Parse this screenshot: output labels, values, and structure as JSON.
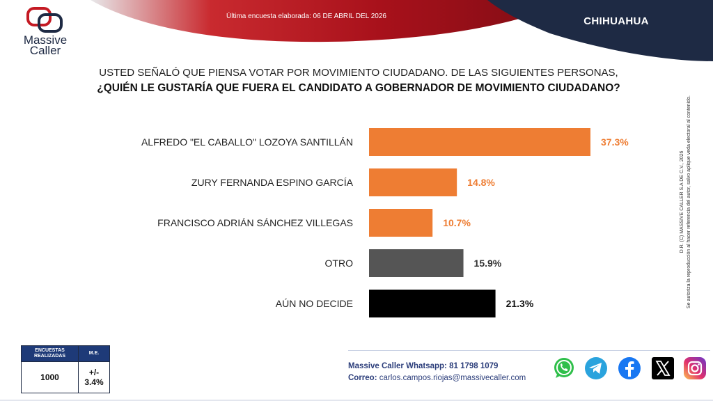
{
  "header": {
    "brand_line1": "Massive",
    "brand_line2": "Caller",
    "survey_date_label": "Última encuesta elaborada:",
    "survey_date_value": "06 DE ABRIL DEL 2026",
    "region": "CHIHUAHUA",
    "colors": {
      "red": "#b0141e",
      "navy": "#1e2a44"
    }
  },
  "question": {
    "line1": "USTED SEÑALÓ QUE PIENSA VOTAR POR MOVIMIENTO CIUDADANO. DE LAS SIGUIENTES PERSONAS,",
    "line2": "¿QUIÉN LE GUSTARÍA QUE FUERA EL CANDIDATO A GOBERNADOR DE MOVIMIENTO CIUDADANO?"
  },
  "chart_data": {
    "type": "bar",
    "orientation": "horizontal",
    "categories": [
      "ALFREDO \"EL CABALLO\" LOZOYA SANTILLÁN",
      "ZURY FERNANDA ESPINO GARCÍA",
      "FRANCISCO ADRIÁN SÁNCHEZ VILLEGAS",
      "OTRO",
      "AÚN NO DECIDE"
    ],
    "values": [
      37.3,
      14.8,
      10.7,
      15.9,
      21.3
    ],
    "labels": [
      "37.3%",
      "14.8%",
      "10.7%",
      "15.9%",
      "21.3%"
    ],
    "colors": [
      "#ee7d33",
      "#ee7d33",
      "#ee7d33",
      "#555555",
      "#000000"
    ],
    "label_colors": [
      "#ee7d33",
      "#ee7d33",
      "#ee7d33",
      "#333333",
      "#111111"
    ],
    "xlim": [
      0,
      40
    ],
    "grid": false,
    "legend": "none"
  },
  "side_note": {
    "line1": "D.R. (C) MASSIVE CALLER S.A DE C.V., 2026",
    "line2": "Se autoriza la reproducción al hacer referencia del autor, salvo aplique veda electoral al contenido."
  },
  "meta": {
    "col1_header": "ENCUESTAS REALIZADAS",
    "col2_header": "M.E.",
    "col1_value": "1000",
    "col2_value": "+/- 3.4%"
  },
  "contact": {
    "whatsapp_label": "Massive Caller Whatsapp:",
    "whatsapp_number": "81 1798 1079",
    "email_label": "Correo:",
    "email_value": "carlos.campos.riojas@massivecaller.com"
  },
  "socials": [
    "whatsapp-icon",
    "telegram-icon",
    "facebook-icon",
    "x-icon",
    "instagram-icon"
  ]
}
